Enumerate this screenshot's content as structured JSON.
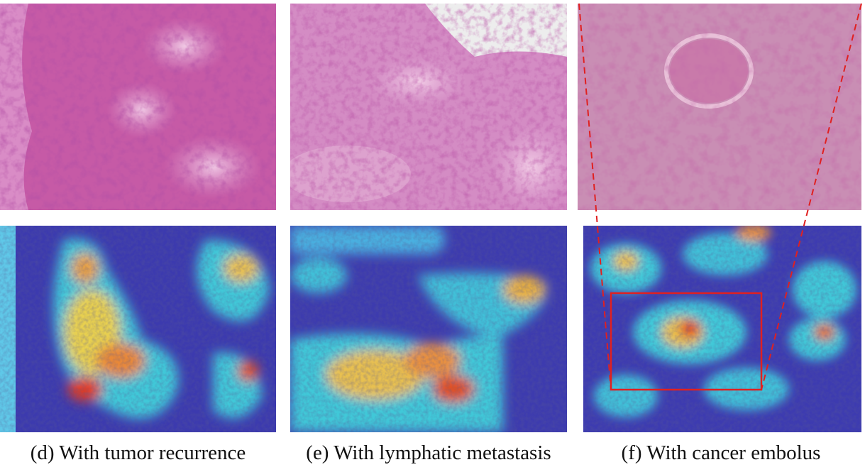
{
  "figure": {
    "captions": {
      "d": "(d) With tumor recurrence",
      "e": "(e) With lymphatic metastasis",
      "f": "(f) With cancer embolus"
    },
    "colors": {
      "he_pink": "#c85aa8",
      "he_dark": "#7a1f6a",
      "he_light": "#e8b8dc",
      "heat_base": "#3b38b8",
      "heat_cyan": "#40d0e0",
      "heat_yellow": "#f0d040",
      "heat_red": "#e03020",
      "zoom_box": "#e02020"
    }
  }
}
